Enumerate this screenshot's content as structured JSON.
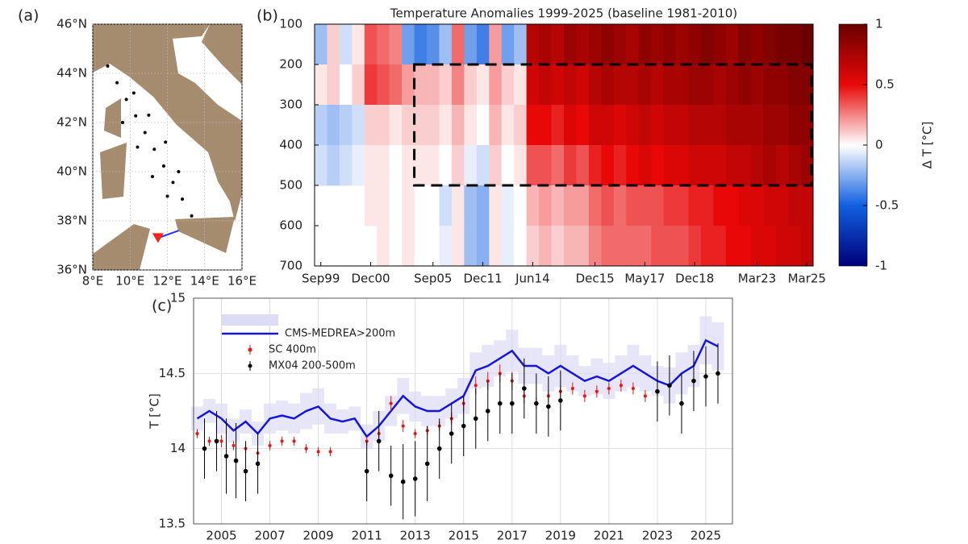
{
  "chart_data": [
    {
      "type": "map",
      "panel_label": "(a)",
      "xlim": [
        8,
        16
      ],
      "ylim": [
        36,
        46
      ],
      "xticks": [
        {
          "value": 8,
          "label": "8°E"
        },
        {
          "value": 10,
          "label": "10°E"
        },
        {
          "value": 12,
          "label": "12°E"
        },
        {
          "value": 14,
          "label": "14°E"
        },
        {
          "value": 16,
          "label": "16°E"
        }
      ],
      "yticks": [
        {
          "value": 36,
          "label": "36°N"
        },
        {
          "value": 38,
          "label": "38°N"
        },
        {
          "value": 40,
          "label": "40°N"
        },
        {
          "value": 42,
          "label": "42°N"
        },
        {
          "value": 44,
          "label": "44°N"
        },
        {
          "value": 46,
          "label": "46°N"
        }
      ],
      "grid": true,
      "track": {
        "color": "#000000",
        "lon": [
          8.8,
          9.3,
          9.8,
          10.3,
          10.8,
          11.3,
          11.8,
          12.3,
          12.8,
          13.3,
          9.6,
          10.4,
          11.2,
          12.0,
          10.2,
          11.0,
          11.9,
          12.6
        ],
        "lat": [
          44.3,
          43.62,
          42.94,
          42.27,
          41.59,
          40.91,
          40.23,
          39.56,
          38.88,
          38.2,
          42.0,
          41.0,
          39.8,
          39.0,
          43.2,
          42.3,
          41.2,
          40.0
        ]
      },
      "station": {
        "lon": 11.5,
        "lat": 37.3,
        "color": "#ff2020"
      },
      "section": {
        "lon": [
          11.5,
          12.6
        ],
        "lat": [
          37.3,
          37.6
        ],
        "color": "#2030ff"
      }
    },
    {
      "type": "heatmap",
      "panel_label": "(b)",
      "title": "Temperature Anomalies 1999-2025 (baseline 1981-2010)",
      "x": [
        "Sep99",
        null,
        null,
        null,
        "Dec00",
        null,
        null,
        null,
        null,
        "Sep05",
        null,
        null,
        null,
        "Dec11",
        null,
        null,
        null,
        "Jun14",
        null,
        null,
        null,
        null,
        "Dec15",
        null,
        null,
        null,
        "May17",
        null,
        null,
        null,
        "Dec18",
        null,
        null,
        null,
        null,
        "Mar23",
        null,
        null,
        null,
        "Mar25"
      ],
      "ylim": [
        100,
        700
      ],
      "y_reversed": true,
      "yticks": [
        100,
        200,
        300,
        400,
        500,
        600,
        700
      ],
      "values": [
        [
          -0.2,
          0.1,
          -0.1,
          0.05,
          0.35,
          0.3,
          0.25,
          -0.3,
          -0.4,
          -0.35,
          -0.2,
          0.3,
          -0.3,
          -0.4,
          0.2,
          -0.3,
          -0.2,
          0.7,
          0.75,
          0.7,
          0.8,
          0.75,
          0.8,
          0.85,
          0.8,
          0.75,
          0.85,
          0.8,
          0.85,
          0.8,
          0.85,
          0.9,
          0.85,
          0.8,
          0.9,
          0.85,
          0.9,
          0.95,
          0.95,
          1.0
        ],
        [
          0.05,
          0.1,
          0.0,
          0.1,
          0.4,
          0.35,
          0.3,
          0.2,
          0.15,
          0.15,
          0.1,
          0.25,
          0.1,
          0.05,
          0.2,
          0.1,
          0.05,
          0.6,
          0.65,
          0.6,
          0.65,
          0.6,
          0.7,
          0.75,
          0.7,
          0.7,
          0.75,
          0.7,
          0.75,
          0.75,
          0.8,
          0.8,
          0.75,
          0.8,
          0.85,
          0.8,
          0.85,
          0.85,
          0.9,
          0.9
        ],
        [
          -0.15,
          -0.2,
          -0.15,
          -0.1,
          0.1,
          0.1,
          0.05,
          0.1,
          0.1,
          0.1,
          0.05,
          0.15,
          0.05,
          0.0,
          0.15,
          0.05,
          0.1,
          0.5,
          0.5,
          0.45,
          0.55,
          0.5,
          0.6,
          0.6,
          0.55,
          0.6,
          0.65,
          0.6,
          0.65,
          0.65,
          0.7,
          0.7,
          0.7,
          0.75,
          0.75,
          0.75,
          0.8,
          0.8,
          0.85,
          0.85
        ],
        [
          -0.1,
          -0.15,
          -0.1,
          -0.05,
          0.05,
          0.05,
          0.0,
          0.05,
          0.05,
          0.05,
          0.0,
          0.1,
          -0.05,
          -0.1,
          0.1,
          0.0,
          0.05,
          0.35,
          0.35,
          0.3,
          0.4,
          0.35,
          0.45,
          0.5,
          0.45,
          0.5,
          0.55,
          0.5,
          0.55,
          0.55,
          0.6,
          0.6,
          0.6,
          0.65,
          0.65,
          0.7,
          0.75,
          0.7,
          0.75,
          0.8
        ],
        [
          null,
          null,
          null,
          null,
          0.05,
          0.05,
          0.0,
          0.05,
          0.0,
          0.0,
          -0.1,
          0.05,
          -0.2,
          -0.25,
          0.05,
          -0.05,
          0.0,
          0.15,
          0.2,
          0.15,
          0.2,
          0.2,
          0.3,
          0.35,
          0.3,
          0.35,
          0.35,
          0.35,
          0.4,
          0.4,
          0.45,
          0.45,
          0.5,
          0.5,
          0.55,
          0.55,
          0.6,
          0.6,
          0.65,
          0.65
        ],
        [
          null,
          null,
          null,
          null,
          null,
          0.05,
          0.0,
          0.05,
          0.0,
          0.0,
          -0.05,
          0.05,
          -0.2,
          -0.25,
          0.05,
          -0.05,
          0.0,
          0.1,
          0.15,
          0.1,
          0.15,
          0.15,
          0.25,
          0.3,
          0.3,
          0.3,
          0.3,
          0.35,
          0.35,
          0.35,
          0.4,
          0.45,
          0.45,
          0.5,
          0.5,
          0.55,
          0.55,
          0.6,
          0.6,
          0.65
        ]
      ],
      "zlim": [
        -1,
        1
      ],
      "zticks": [
        1,
        0.5,
        0,
        -0.5,
        -1
      ],
      "colormap": [
        "#00007a",
        "#1060e0",
        "#ffffff",
        "#e80808",
        "#6a0000"
      ],
      "colorbar_label": "Δ T [°C]",
      "highlight_depth": [
        200,
        500
      ]
    },
    {
      "type": "line",
      "panel_label": "(c)",
      "ylabel": "T [°C]",
      "xlim": [
        2003.85,
        2026.1
      ],
      "xticks": [
        2005,
        2007,
        2009,
        2011,
        2013,
        2015,
        2017,
        2019,
        2021,
        2023,
        2025
      ],
      "ylim": [
        13.5,
        15
      ],
      "yticks": [
        13.5,
        14,
        14.5,
        15
      ],
      "grid": true,
      "legend": "upper left",
      "series": [
        {
          "name": "CMS-MEDREA>200m",
          "color": "#1515e0",
          "mode": "line",
          "band_color": "#dcdcf5",
          "x": [
            2004,
            2004.5,
            2005,
            2005.5,
            2006,
            2006.5,
            2007,
            2007.5,
            2008,
            2008.5,
            2009,
            2009.5,
            2010,
            2010.5,
            2011,
            2011.5,
            2012,
            2012.5,
            2013,
            2013.5,
            2014,
            2014.5,
            2015,
            2015.5,
            2016,
            2016.5,
            2017,
            2017.5,
            2018,
            2018.5,
            2019,
            2019.5,
            2020,
            2020.5,
            2021,
            2021.5,
            2022,
            2022.5,
            2023,
            2023.5,
            2024,
            2024.5,
            2025,
            2025.5
          ],
          "values": [
            14.2,
            14.25,
            14.2,
            14.12,
            14.18,
            14.1,
            14.2,
            14.22,
            14.2,
            14.25,
            14.28,
            14.2,
            14.18,
            14.2,
            14.08,
            14.15,
            14.25,
            14.35,
            14.28,
            14.25,
            14.25,
            14.3,
            14.35,
            14.52,
            14.55,
            14.6,
            14.65,
            14.55,
            14.55,
            14.5,
            14.55,
            14.5,
            14.45,
            14.48,
            14.45,
            14.5,
            14.55,
            14.5,
            14.45,
            14.42,
            14.5,
            14.55,
            14.72,
            14.68
          ],
          "band": [
            0.08,
            0.08,
            0.1,
            0.08,
            0.08,
            0.08,
            0.1,
            0.1,
            0.1,
            0.12,
            0.12,
            0.1,
            0.08,
            0.08,
            0.08,
            0.1,
            0.1,
            0.12,
            0.1,
            0.1,
            0.1,
            0.1,
            0.12,
            0.12,
            0.14,
            0.12,
            0.14,
            0.12,
            0.12,
            0.12,
            0.14,
            0.12,
            0.1,
            0.12,
            0.12,
            0.12,
            0.14,
            0.12,
            0.1,
            0.12,
            0.14,
            0.14,
            0.16,
            0.16
          ]
        },
        {
          "name": "SC 400m",
          "color": "#ee1111",
          "mode": "points",
          "x": [
            2004,
            2004.5,
            2005,
            2005.5,
            2006,
            2006.5,
            2007,
            2007.5,
            2008,
            2008.5,
            2009,
            2009.5,
            2011,
            2011.5,
            2012,
            2012.5,
            2013,
            2013.5,
            2014,
            2014.5,
            2015,
            2015.5,
            2016,
            2016.5,
            2017,
            2017.5,
            2018,
            2018.5,
            2019,
            2019.5,
            2020,
            2020.5,
            2021,
            2021.5,
            2022,
            2022.5
          ],
          "values": [
            14.1,
            14.05,
            14.05,
            14.02,
            14.0,
            13.97,
            14.02,
            14.05,
            14.05,
            14.0,
            13.98,
            13.98,
            14.05,
            14.1,
            14.3,
            14.15,
            14.1,
            14.12,
            14.15,
            14.2,
            14.3,
            14.42,
            14.45,
            14.5,
            14.45,
            14.35,
            14.3,
            14.35,
            14.38,
            14.4,
            14.35,
            14.38,
            14.4,
            14.42,
            14.4,
            14.35
          ],
          "errors": [
            0.03,
            0.03,
            0.04,
            0.03,
            0.03,
            0.03,
            0.03,
            0.03,
            0.03,
            0.03,
            0.03,
            0.03,
            0.03,
            0.03,
            0.05,
            0.04,
            0.03,
            0.03,
            0.03,
            0.04,
            0.05,
            0.06,
            0.06,
            0.06,
            0.06,
            0.05,
            0.04,
            0.04,
            0.04,
            0.04,
            0.04,
            0.04,
            0.04,
            0.04,
            0.04,
            0.04
          ]
        },
        {
          "name": "MX04 200-500m",
          "color": "#000000",
          "mode": "points",
          "x": [
            2004.3,
            2004.8,
            2005.2,
            2005.6,
            2006.0,
            2006.5,
            2011.0,
            2011.5,
            2012.0,
            2012.5,
            2013.0,
            2013.5,
            2014.0,
            2014.5,
            2015.0,
            2015.5,
            2016.0,
            2016.5,
            2017.0,
            2017.5,
            2018.0,
            2018.5,
            2019.0,
            2023.0,
            2023.5,
            2024.0,
            2024.5,
            2025.0,
            2025.5
          ],
          "values": [
            14.0,
            14.05,
            13.95,
            13.92,
            13.85,
            13.9,
            13.85,
            14.05,
            13.82,
            13.78,
            13.8,
            13.9,
            14.0,
            14.1,
            14.15,
            14.2,
            14.25,
            14.3,
            14.3,
            14.4,
            14.3,
            14.28,
            14.32,
            14.38,
            14.42,
            14.3,
            14.45,
            14.48,
            14.5
          ],
          "errors": [
            0.2,
            0.2,
            0.25,
            0.25,
            0.2,
            0.2,
            0.2,
            0.2,
            0.2,
            0.25,
            0.25,
            0.25,
            0.2,
            0.2,
            0.2,
            0.2,
            0.2,
            0.2,
            0.2,
            0.2,
            0.2,
            0.2,
            0.2,
            0.2,
            0.2,
            0.2,
            0.2,
            0.2,
            0.2
          ]
        }
      ]
    }
  ]
}
